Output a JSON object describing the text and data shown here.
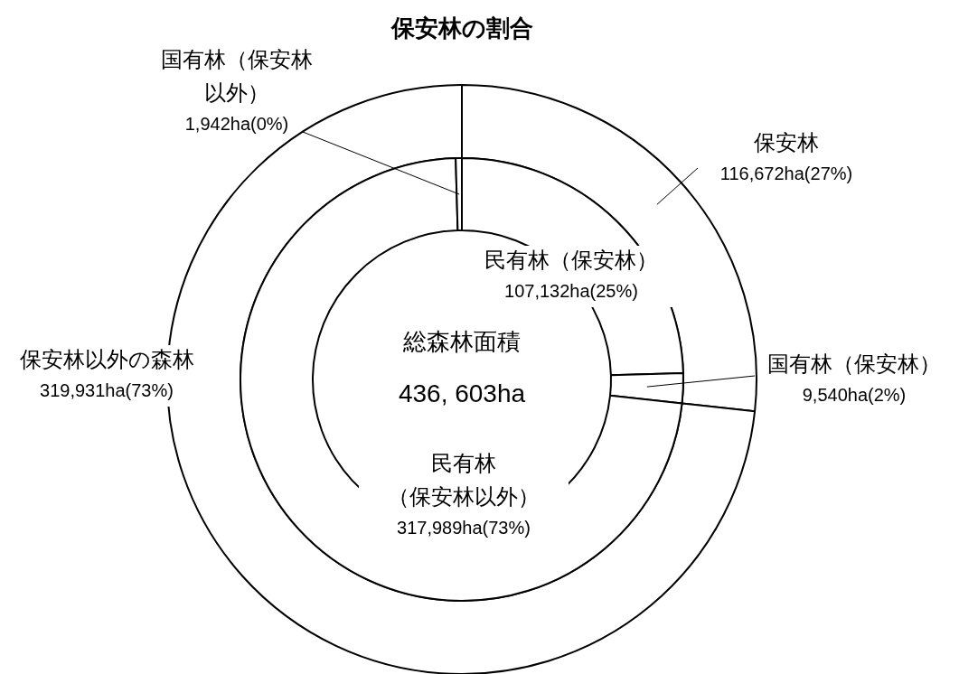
{
  "chart_data": [
    {
      "type": "donut",
      "title": "保安林の割合",
      "categories": [
        "保安林",
        "保安林以外の森林"
      ],
      "values": [
        116672,
        319931
      ],
      "colors": [
        "#ffffff",
        "#ffffff"
      ],
      "value_labels": [
        "116,672ha(27%)",
        "319,931ha(73%)"
      ]
    },
    {
      "type": "donut",
      "annotations": [
        "総森林面積",
        "436, 603ha"
      ],
      "categories": [
        "民有林（保安林）",
        "国有林（保安林）",
        "民有林（保安林以外）",
        "国有林（保安林以外）"
      ],
      "values": [
        107132,
        9540,
        317989,
        1942
      ],
      "colors": [
        "#ffffff",
        "#ffffff",
        "#ffffff",
        "#ffffff"
      ],
      "value_labels": [
        "107,132ha(25%)",
        "9,540ha(2%)",
        "317,989ha(73%)",
        "1,942ha(0%)"
      ]
    }
  ]
}
